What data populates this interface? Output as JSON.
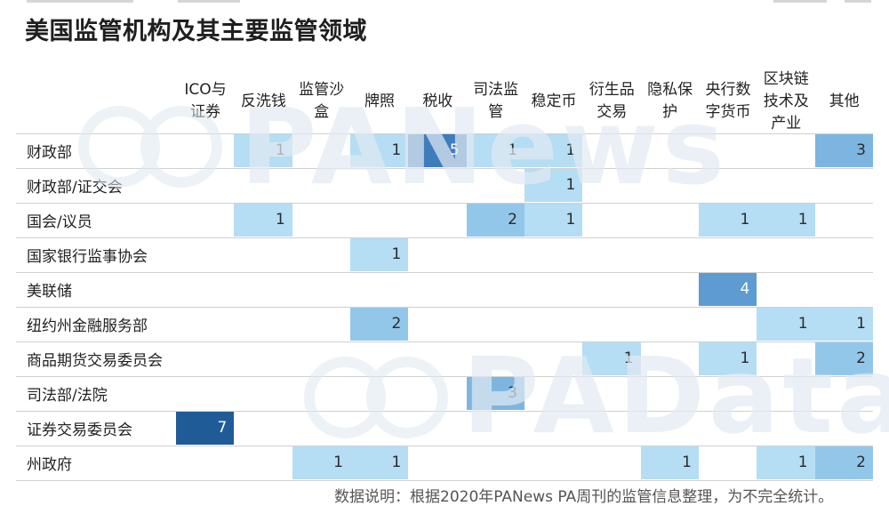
{
  "header": {
    "title": "美国监管机构及其主要监管领域"
  },
  "footer": {
    "note": "数据说明：根据2020年PANews PA周刊的监管信息整理，为不完全统计。"
  },
  "watermarks": {
    "top": "PANews",
    "bottom": "PAData"
  },
  "colors": {
    "level_1": "#b5ddf3",
    "level_2": "#93c7ea",
    "level_3": "#7db5e0",
    "level_4": "#5e9bd0",
    "level_5": "#3f7cbc",
    "level_7": "#1f5b97"
  },
  "chart_data": {
    "type": "heatmap",
    "title": "美国监管机构及其主要监管领域",
    "columns": [
      "ICO与证券",
      "反洗钱",
      "监管沙盒",
      "牌照",
      "税收",
      "司法监管",
      "稳定币",
      "衍生品交易",
      "隐私保护",
      "央行数字货币",
      "区块链技术及产业",
      "其他"
    ],
    "rows": [
      "财政部",
      "财政部/证交会",
      "国会/议员",
      "国家银行监事协会",
      "美联储",
      "纽约州金融服务部",
      "商品期货交易委员会",
      "司法部/法院",
      "证券交易委员会",
      "州政府"
    ],
    "values": [
      [
        null,
        1,
        null,
        1,
        5,
        1,
        1,
        null,
        null,
        null,
        null,
        3
      ],
      [
        null,
        null,
        null,
        null,
        null,
        null,
        1,
        null,
        null,
        null,
        null,
        null
      ],
      [
        null,
        1,
        null,
        null,
        null,
        2,
        1,
        null,
        null,
        1,
        1,
        null
      ],
      [
        null,
        null,
        null,
        1,
        null,
        null,
        null,
        null,
        null,
        null,
        null,
        null
      ],
      [
        null,
        null,
        null,
        null,
        null,
        null,
        null,
        null,
        null,
        4,
        null,
        null
      ],
      [
        null,
        null,
        null,
        2,
        null,
        null,
        null,
        null,
        null,
        null,
        1,
        1
      ],
      [
        null,
        null,
        null,
        null,
        null,
        null,
        null,
        1,
        null,
        1,
        null,
        2
      ],
      [
        null,
        null,
        null,
        null,
        null,
        3,
        null,
        null,
        null,
        null,
        null,
        null
      ],
      [
        7,
        null,
        null,
        null,
        null,
        null,
        null,
        null,
        null,
        null,
        null,
        null
      ],
      [
        null,
        null,
        1,
        1,
        null,
        null,
        null,
        null,
        1,
        null,
        1,
        2
      ]
    ]
  }
}
